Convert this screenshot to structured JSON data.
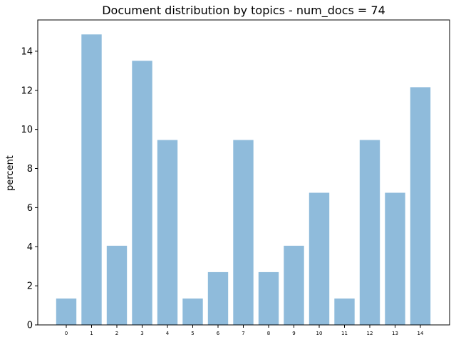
{
  "chart_data": {
    "type": "bar",
    "title": "Document distribution by topics - num_docs = 74",
    "xlabel": "",
    "ylabel": "percent",
    "categories": [
      "0",
      "1",
      "2",
      "3",
      "4",
      "5",
      "6",
      "7",
      "8",
      "9",
      "10",
      "11",
      "12",
      "13",
      "14"
    ],
    "values": [
      1.35,
      14.86,
      4.05,
      13.51,
      9.46,
      1.35,
      2.7,
      9.46,
      2.7,
      4.05,
      6.76,
      1.35,
      9.46,
      6.76,
      12.16
    ],
    "ylim": [
      0,
      15.6
    ],
    "yticks": [
      "0",
      "2",
      "4",
      "6",
      "8",
      "10",
      "12",
      "14"
    ],
    "grid": false,
    "bar_color": "#8fbbdb"
  }
}
